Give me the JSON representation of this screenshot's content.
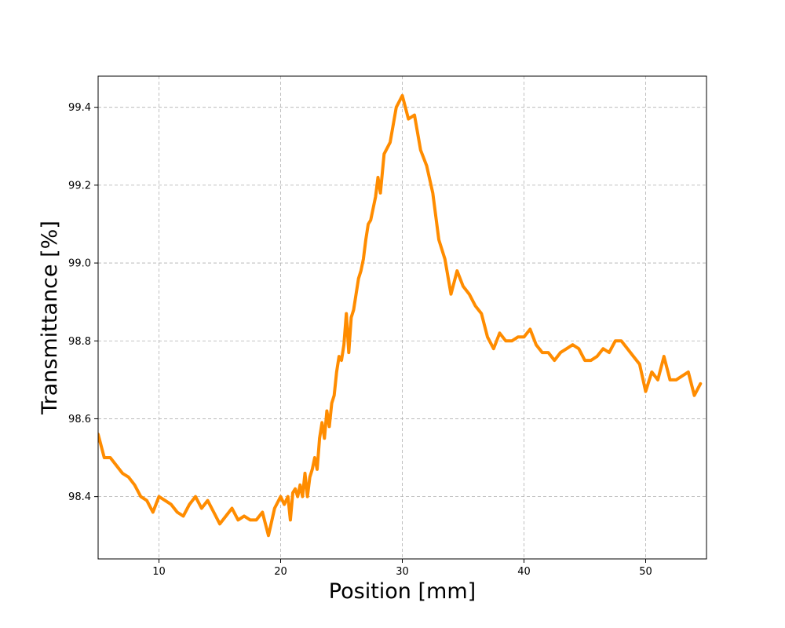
{
  "chart_data": {
    "type": "line",
    "title": "",
    "xlabel": "Position [mm]",
    "ylabel": "Transmittance [%]",
    "xlim": [
      5,
      55
    ],
    "ylim": [
      98.24,
      99.48
    ],
    "xticks": [
      10,
      20,
      30,
      40,
      50
    ],
    "yticks": [
      98.4,
      98.6,
      98.8,
      99.0,
      99.2,
      99.4
    ],
    "ytick_decimals": 1,
    "grid": true,
    "line_color": "#ff8c00",
    "series": [
      {
        "x": [
          5.0,
          5.5,
          6.0,
          6.5,
          7.0,
          7.5,
          8.0,
          8.5,
          9.0,
          9.5,
          10.0,
          10.5,
          11.0,
          11.5,
          12.0,
          12.5,
          13.0,
          13.5,
          14.0,
          14.5,
          15.0,
          15.5,
          16.0,
          16.5,
          17.0,
          17.5,
          18.0,
          18.5,
          19.0,
          19.5,
          20.0,
          20.3,
          20.6,
          20.8,
          21.0,
          21.2,
          21.4,
          21.6,
          21.8,
          22.0,
          22.2,
          22.4,
          22.6,
          22.8,
          23.0,
          23.2,
          23.4,
          23.6,
          23.8,
          24.0,
          24.2,
          24.4,
          24.6,
          24.8,
          25.0,
          25.2,
          25.4,
          25.6,
          25.8,
          26.0,
          26.2,
          26.4,
          26.6,
          26.8,
          27.0,
          27.2,
          27.4,
          27.6,
          27.8,
          28.0,
          28.2,
          28.5,
          29.0,
          29.5,
          30.0,
          30.5,
          31.0,
          31.5,
          32.0,
          32.5,
          33.0,
          33.5,
          34.0,
          34.5,
          35.0,
          35.5,
          36.0,
          36.5,
          37.0,
          37.5,
          38.0,
          38.5,
          39.0,
          39.5,
          40.0,
          40.5,
          41.0,
          41.5,
          42.0,
          42.5,
          43.0,
          43.5,
          44.0,
          44.5,
          45.0,
          45.5,
          46.0,
          46.5,
          47.0,
          47.5,
          48.0,
          48.5,
          49.0,
          49.5,
          50.0,
          50.5,
          51.0,
          51.5,
          52.0,
          52.5,
          53.0,
          53.5,
          54.0,
          54.5
        ],
        "y": [
          98.56,
          98.5,
          98.5,
          98.48,
          98.46,
          98.45,
          98.43,
          98.4,
          98.39,
          98.36,
          98.4,
          98.39,
          98.38,
          98.36,
          98.35,
          98.38,
          98.4,
          98.37,
          98.39,
          98.36,
          98.33,
          98.35,
          98.37,
          98.34,
          98.35,
          98.34,
          98.34,
          98.36,
          98.3,
          98.37,
          98.4,
          98.38,
          98.4,
          98.34,
          98.41,
          98.42,
          98.4,
          98.43,
          98.4,
          98.46,
          98.4,
          98.45,
          98.47,
          98.5,
          98.47,
          98.55,
          98.59,
          98.55,
          98.62,
          98.58,
          98.64,
          98.66,
          98.72,
          98.76,
          98.75,
          98.79,
          98.87,
          98.77,
          98.86,
          98.88,
          98.92,
          98.96,
          98.98,
          99.01,
          99.06,
          99.1,
          99.11,
          99.14,
          99.17,
          99.22,
          99.18,
          99.28,
          99.31,
          99.4,
          99.43,
          99.37,
          99.38,
          99.29,
          99.25,
          99.18,
          99.06,
          99.01,
          98.92,
          98.98,
          98.94,
          98.92,
          98.89,
          98.87,
          98.81,
          98.78,
          98.82,
          98.8,
          98.8,
          98.81,
          98.81,
          98.83,
          98.79,
          98.77,
          98.77,
          98.75,
          98.77,
          98.78,
          98.79,
          98.78,
          98.75,
          98.75,
          98.76,
          98.78,
          98.77,
          98.8,
          98.8,
          98.78,
          98.76,
          98.74,
          98.67,
          98.72,
          98.7,
          98.76,
          98.7,
          98.7,
          98.71,
          98.72,
          98.66,
          98.69
        ]
      }
    ]
  }
}
